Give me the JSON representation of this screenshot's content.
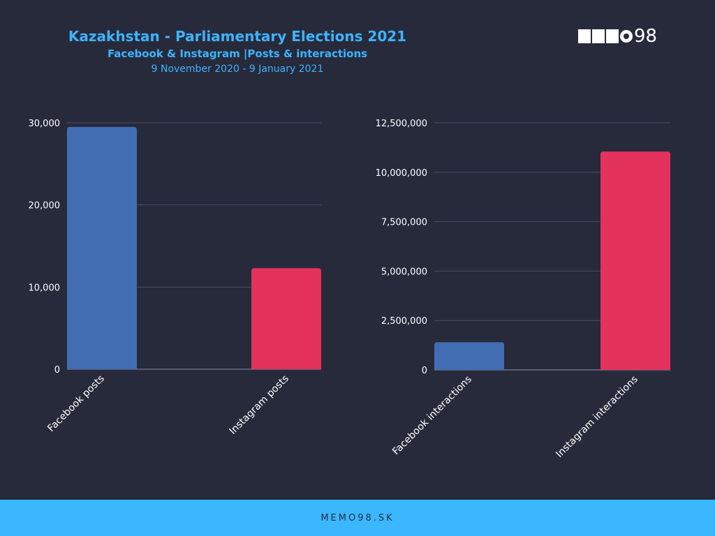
{
  "header": {
    "title": "Kazakhstan - Parliamentary Elections 2021",
    "subtitle": "Facebook & Instagram |Posts & interactions",
    "date_range": "9 November 2020 - 9 January 2021"
  },
  "logo": {
    "text": "98",
    "icon": "memo98-logo"
  },
  "footer": {
    "text": "MEMO98.SK"
  },
  "colors": {
    "background": "#272a3b",
    "facebook": "#436db3",
    "instagram": "#e3325c",
    "grid": "#4a4e66",
    "axis_text": "#ffffff",
    "footer": "#3ab7ff"
  },
  "chart_data": [
    {
      "type": "bar",
      "categories": [
        "Facebook posts",
        "Instagram posts"
      ],
      "values": [
        29500,
        12300
      ],
      "ylim": [
        0,
        30000
      ],
      "yticks": [
        0,
        10000,
        20000,
        30000
      ],
      "ytick_labels": [
        "0",
        "10,000",
        "20,000",
        "30,000"
      ],
      "grid": true
    },
    {
      "type": "bar",
      "categories": [
        "Facebook interactions",
        "Instagram interactions"
      ],
      "values": [
        1400000,
        11050000
      ],
      "ylim": [
        0,
        12500000
      ],
      "yticks": [
        0,
        2500000,
        5000000,
        7500000,
        10000000,
        12500000
      ],
      "ytick_labels": [
        "0",
        "2,500,000",
        "5,000,000",
        "7,500,000",
        "10,000,000",
        "12,500,000"
      ],
      "grid": true
    }
  ]
}
